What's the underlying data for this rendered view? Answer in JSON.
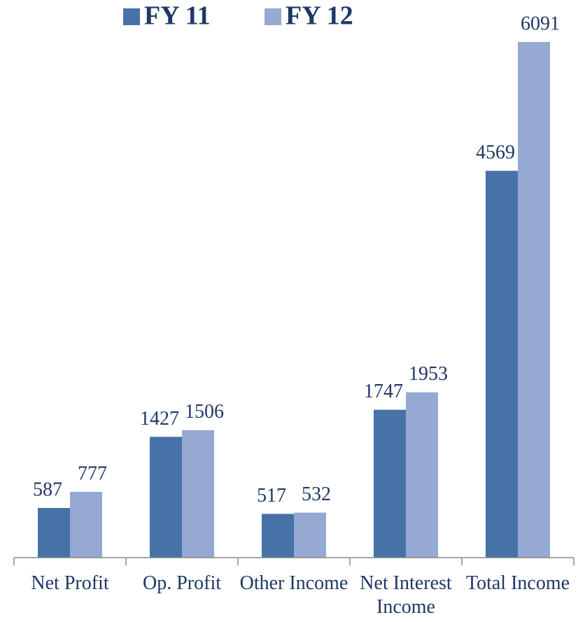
{
  "chart_data": {
    "type": "bar",
    "categories": [
      "Net Profit",
      "Op. Profit",
      "Other Income",
      "Net Interest Income",
      "Total Income"
    ],
    "series": [
      {
        "name": "FY 11",
        "color": "#4772a7",
        "values": [
          587,
          1427,
          517,
          1747,
          4569
        ]
      },
      {
        "name": "FY 12",
        "color": "#95a9d2",
        "values": [
          777,
          1506,
          532,
          1953,
          6091
        ]
      }
    ]
  }
}
